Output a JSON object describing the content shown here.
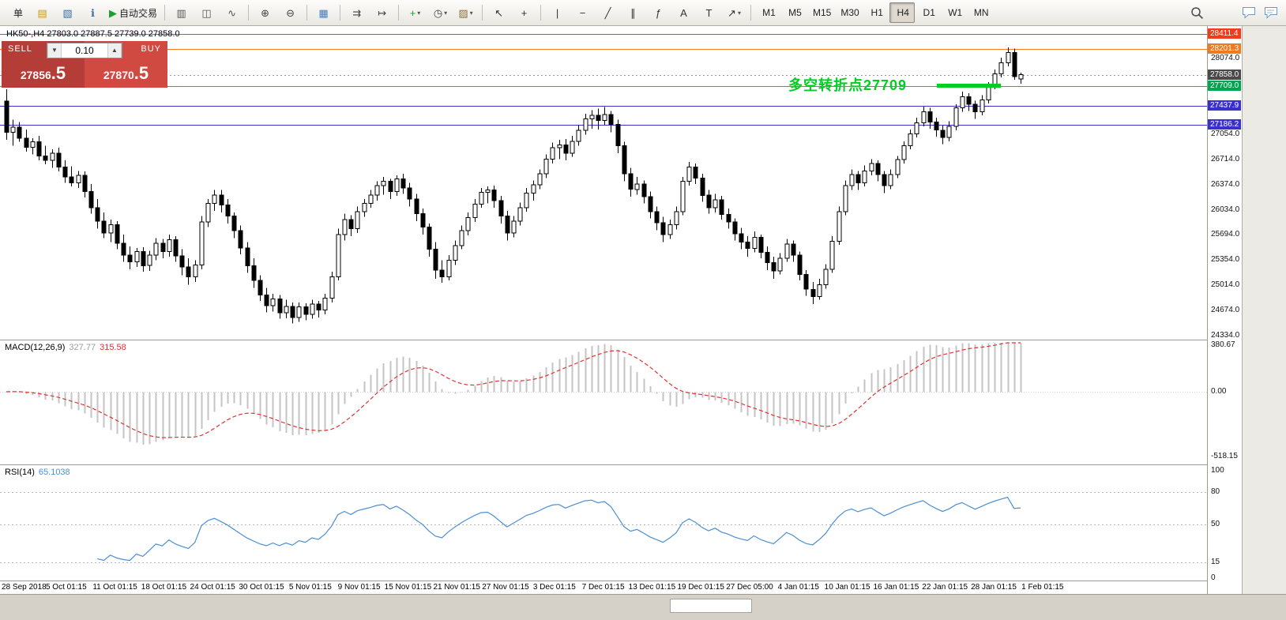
{
  "toolbar": {
    "caret_glyph": "▾",
    "items": [
      {
        "name": "new-order-button",
        "label": "单"
      },
      {
        "name": "market-watch-button",
        "icon": "market-watch-icon",
        "glyph": "▤",
        "color": "#c09a28"
      },
      {
        "name": "navigator-button",
        "icon": "navigator-icon",
        "glyph": "▧",
        "color": "#3a6ea5"
      },
      {
        "name": "data-window-button",
        "icon": "data-window-icon",
        "glyph": "ℹ",
        "color": "#3a6ea5"
      },
      {
        "name": "autotrading-button",
        "icon": "autotrading-play-icon",
        "glyph": "▶",
        "color": "#1d9e2f",
        "label": "自动交易"
      },
      {
        "sep": true
      },
      {
        "name": "bar-chart-button",
        "icon": "bar-chart-icon",
        "glyph": "▥",
        "color": "#555555"
      },
      {
        "name": "candlestick-chart-button",
        "icon": "candlestick-chart-icon",
        "glyph": "◫",
        "color": "#555555"
      },
      {
        "name": "line-chart-button",
        "icon": "line-chart-icon",
        "glyph": "∿",
        "color": "#555555"
      },
      {
        "sep": true
      },
      {
        "name": "zoom-in-button",
        "icon": "zoom-in-icon",
        "glyph": "⊕",
        "color": "#444444"
      },
      {
        "name": "zoom-out-button",
        "icon": "zoom-out-icon",
        "glyph": "⊖",
        "color": "#444444"
      },
      {
        "sep": true
      },
      {
        "name": "tile-windows-button",
        "icon": "tile-windows-icon",
        "glyph": "▦",
        "color": "#4c7ab0"
      },
      {
        "sep": true
      },
      {
        "name": "auto-scroll-button",
        "icon": "auto-scroll-icon",
        "glyph": "⇉",
        "color": "#444444"
      },
      {
        "name": "chart-shift-button",
        "icon": "chart-shift-icon",
        "glyph": "↦",
        "color": "#444444"
      },
      {
        "sep": true
      },
      {
        "name": "indicators-button",
        "icon": "indicators-plus-icon",
        "glyph": "+",
        "color": "#1d9e2f",
        "caret": true
      },
      {
        "name": "periods-button",
        "icon": "clock-icon",
        "glyph": "◷",
        "color": "#444444",
        "caret": true
      },
      {
        "name": "templates-button",
        "icon": "templates-icon",
        "glyph": "▨",
        "color": "#8a6d3b",
        "caret": true
      },
      {
        "sep": true
      },
      {
        "name": "cursor-button",
        "icon": "cursor-icon",
        "glyph": "↖",
        "color": "#333333"
      },
      {
        "name": "crosshair-button",
        "icon": "crosshair-icon",
        "glyph": "+",
        "color": "#333333"
      },
      {
        "sep": true
      },
      {
        "name": "vertical-line-button",
        "icon": "vertical-line-icon",
        "glyph": "|",
        "color": "#333333"
      },
      {
        "name": "horizontal-line-button",
        "icon": "horizontal-line-icon",
        "glyph": "−",
        "color": "#333333"
      },
      {
        "name": "trendline-button",
        "icon": "trendline-icon",
        "glyph": "╱",
        "color": "#333333"
      },
      {
        "name": "channel-button",
        "icon": "channel-icon",
        "glyph": "∥",
        "color": "#333333"
      },
      {
        "name": "fibonacci-button",
        "icon": "fibonacci-icon",
        "glyph": "ƒ",
        "color": "#333333"
      },
      {
        "name": "text-button",
        "icon": "text-icon",
        "glyph": "A",
        "color": "#333333"
      },
      {
        "name": "text-label-button",
        "icon": "text-label-icon",
        "glyph": "T",
        "color": "#333333"
      },
      {
        "name": "arrows-button",
        "icon": "arrow-objects-icon",
        "glyph": "↗",
        "color": "#333333",
        "caret": true
      },
      {
        "sep": true
      },
      {
        "name": "timeframe-m1-button",
        "label": "M1",
        "tf": true
      },
      {
        "name": "timeframe-m5-button",
        "label": "M5",
        "tf": true
      },
      {
        "name": "timeframe-m15-button",
        "label": "M15",
        "tf": true
      },
      {
        "name": "timeframe-m30-button",
        "label": "M30",
        "tf": true
      },
      {
        "name": "timeframe-h1-button",
        "label": "H1",
        "tf": true
      },
      {
        "name": "timeframe-h4-button",
        "label": "H4",
        "tf": true,
        "pressed": true
      },
      {
        "name": "timeframe-d1-button",
        "label": "D1",
        "tf": true
      },
      {
        "name": "timeframe-w1-button",
        "label": "W1",
        "tf": true
      },
      {
        "name": "timeframe-mn-button",
        "label": "MN",
        "tf": true
      }
    ],
    "active_timeframe": "H4"
  },
  "chart": {
    "title": "HK50-,H4 27803.0 27887.5 27739.0 27858.0",
    "bid": "27858.0",
    "annotation": {
      "text": "多空转折点27709",
      "color": "#00cf21",
      "segment_x": [
        1186,
        1267
      ]
    },
    "hlines": [
      {
        "price": 28411.4,
        "color": "#ff3b1e"
      },
      {
        "price": 28201.3,
        "color": "#ff7a1e"
      },
      {
        "price": 27709.0,
        "color": "#00cf21"
      },
      {
        "price": 27437.9,
        "color": "#3a30d0"
      },
      {
        "price": 27186.2,
        "color": "#3a30d0"
      }
    ],
    "price_axis": {
      "plain": [
        "28074.0",
        "27054.0",
        "26714.0",
        "26374.0",
        "26034.0",
        "25694.0",
        "25354.0",
        "25014.0",
        "24674.0",
        "24334.0"
      ],
      "highlighted": [
        {
          "value": "28411.4",
          "bg": "#f03c1e"
        },
        {
          "value": "28201.3",
          "bg": "#f07a1e"
        },
        {
          "value": "27858.0",
          "bg": "#4a4a4a"
        },
        {
          "value": "27709.0",
          "bg": "#00a550"
        },
        {
          "value": "27437.9",
          "bg": "#3a30d0"
        },
        {
          "value": "27186.2",
          "bg": "#3a30d0"
        }
      ]
    }
  },
  "trade_panel": {
    "sell_label": "SELL",
    "buy_label": "BUY",
    "volume": "0.10",
    "vol_down_glyph": "▼",
    "vol_up_glyph": "▲",
    "sell_price": {
      "main": "27856",
      "frac": ".5"
    },
    "buy_price": {
      "main": "27870",
      "frac": ".5"
    }
  },
  "macd": {
    "label": "MACD(12,26,9)",
    "value1": "327.77",
    "value2": "315.58",
    "axis": [
      "380.67",
      "0.00",
      "-518.15"
    ]
  },
  "rsi": {
    "label": "RSI(14)",
    "value": "65.1038",
    "axis": [
      "100",
      "80",
      "50",
      "15",
      "0"
    ],
    "levels": [
      80,
      50,
      15
    ]
  },
  "time_axis": [
    "28 Sep 2018",
    "5 Oct 01:15",
    "11 Oct 01:15",
    "18 Oct 01:15",
    "24 Oct 01:15",
    "30 Oct 01:15",
    "5 Nov 01:15",
    "9 Nov 01:15",
    "15 Nov 01:15",
    "21 Nov 01:15",
    "27 Nov 01:15",
    "3 Dec 01:15",
    "7 Dec 01:15",
    "13 Dec 01:15",
    "19 Dec 01:15",
    "27 Dec 05:00",
    "4 Jan 01:15",
    "10 Jan 01:15",
    "16 Jan 01:15",
    "22 Jan 01:15",
    "28 Jan 01:15",
    "1 Feb 01:15"
  ],
  "chart_data": {
    "type": "candlestick",
    "symbol": "HK50-",
    "period": "H4",
    "last_ohlc": {
      "open": 27803.0,
      "high": 27887.5,
      "low": 27739.0,
      "close": 27858.0
    },
    "price_axis_range": [
      24334.0,
      28550.0
    ],
    "candles": [
      [
        27500,
        27660,
        26980,
        27080
      ],
      [
        27080,
        27250,
        26900,
        27150
      ],
      [
        27150,
        27220,
        26950,
        27000
      ],
      [
        27000,
        27120,
        26820,
        26880
      ],
      [
        26880,
        27000,
        26780,
        26950
      ],
      [
        26950,
        27030,
        26700,
        26760
      ],
      [
        26760,
        26900,
        26650,
        26700
      ],
      [
        26700,
        26850,
        26600,
        26800
      ],
      [
        26800,
        26870,
        26550,
        26610
      ],
      [
        26610,
        26700,
        26400,
        26480
      ],
      [
        26480,
        26620,
        26350,
        26400
      ],
      [
        26400,
        26560,
        26330,
        26500
      ],
      [
        26500,
        26550,
        26200,
        26280
      ],
      [
        26280,
        26380,
        25980,
        26060
      ],
      [
        26060,
        26180,
        25780,
        25880
      ],
      [
        25880,
        26000,
        25650,
        25720
      ],
      [
        25720,
        25900,
        25600,
        25830
      ],
      [
        25830,
        25880,
        25500,
        25580
      ],
      [
        25580,
        25700,
        25330,
        25420
      ],
      [
        25420,
        25540,
        25230,
        25330
      ],
      [
        25330,
        25520,
        25260,
        25470
      ],
      [
        25470,
        25530,
        25200,
        25280
      ],
      [
        25280,
        25480,
        25210,
        25420
      ],
      [
        25420,
        25650,
        25350,
        25580
      ],
      [
        25580,
        25640,
        25380,
        25470
      ],
      [
        25470,
        25700,
        25400,
        25630
      ],
      [
        25630,
        25680,
        25330,
        25410
      ],
      [
        25410,
        25500,
        25150,
        25260
      ],
      [
        25260,
        25380,
        25020,
        25130
      ],
      [
        25130,
        25350,
        25060,
        25290
      ],
      [
        25290,
        25950,
        25230,
        25870
      ],
      [
        25870,
        26180,
        25800,
        26120
      ],
      [
        26120,
        26300,
        26020,
        26230
      ],
      [
        26230,
        26300,
        26000,
        26100
      ],
      [
        26100,
        26180,
        25850,
        25950
      ],
      [
        25950,
        26000,
        25650,
        25750
      ],
      [
        25750,
        25820,
        25430,
        25520
      ],
      [
        25520,
        25600,
        25180,
        25280
      ],
      [
        25280,
        25380,
        24980,
        25080
      ],
      [
        25080,
        25150,
        24800,
        24880
      ],
      [
        24880,
        24980,
        24650,
        24740
      ],
      [
        24740,
        24900,
        24660,
        24830
      ],
      [
        24830,
        24880,
        24560,
        24640
      ],
      [
        24640,
        24820,
        24570,
        24730
      ],
      [
        24730,
        24780,
        24500,
        24580
      ],
      [
        24580,
        24780,
        24520,
        24720
      ],
      [
        24720,
        24770,
        24540,
        24620
      ],
      [
        24620,
        24820,
        24560,
        24760
      ],
      [
        24760,
        24800,
        24580,
        24680
      ],
      [
        24680,
        24900,
        24620,
        24840
      ],
      [
        24840,
        25200,
        24780,
        25130
      ],
      [
        25130,
        25780,
        25080,
        25700
      ],
      [
        25700,
        25980,
        25620,
        25900
      ],
      [
        25900,
        25960,
        25680,
        25780
      ],
      [
        25780,
        26080,
        25720,
        26010
      ],
      [
        26010,
        26180,
        25940,
        26120
      ],
      [
        26120,
        26300,
        26060,
        26230
      ],
      [
        26230,
        26420,
        26160,
        26360
      ],
      [
        26360,
        26480,
        26240,
        26420
      ],
      [
        26420,
        26450,
        26180,
        26280
      ],
      [
        26280,
        26500,
        26220,
        26450
      ],
      [
        26450,
        26520,
        26250,
        26330
      ],
      [
        26330,
        26400,
        26080,
        26180
      ],
      [
        26180,
        26250,
        25880,
        25980
      ],
      [
        25980,
        26050,
        25700,
        25800
      ],
      [
        25800,
        25850,
        25400,
        25500
      ],
      [
        25500,
        25600,
        25100,
        25220
      ],
      [
        25220,
        25350,
        25050,
        25130
      ],
      [
        25130,
        25420,
        25080,
        25350
      ],
      [
        25350,
        25620,
        25290,
        25550
      ],
      [
        25550,
        25820,
        25500,
        25750
      ],
      [
        25750,
        26000,
        25690,
        25930
      ],
      [
        25930,
        26180,
        25870,
        26110
      ],
      [
        26110,
        26330,
        26060,
        26270
      ],
      [
        26270,
        26350,
        26120,
        26300
      ],
      [
        26300,
        26360,
        26060,
        26160
      ],
      [
        26160,
        26220,
        25850,
        25950
      ],
      [
        25950,
        26020,
        25620,
        25720
      ],
      [
        25720,
        25950,
        25660,
        25880
      ],
      [
        25880,
        26130,
        25820,
        26060
      ],
      [
        26060,
        26330,
        26010,
        26260
      ],
      [
        26260,
        26430,
        26160,
        26370
      ],
      [
        26370,
        26580,
        26310,
        26520
      ],
      [
        26520,
        26780,
        26460,
        26720
      ],
      [
        26720,
        26940,
        26660,
        26870
      ],
      [
        26870,
        26980,
        26720,
        26910
      ],
      [
        26910,
        26990,
        26700,
        26800
      ],
      [
        26800,
        27030,
        26750,
        26960
      ],
      [
        26960,
        27180,
        26900,
        27110
      ],
      [
        27110,
        27330,
        27050,
        27260
      ],
      [
        27260,
        27380,
        27130,
        27310
      ],
      [
        27310,
        27400,
        27120,
        27240
      ],
      [
        27240,
        27420,
        27180,
        27320
      ],
      [
        27320,
        27370,
        27080,
        27190
      ],
      [
        27190,
        27250,
        26800,
        26900
      ],
      [
        26900,
        26950,
        26420,
        26520
      ],
      [
        26520,
        26600,
        26210,
        26310
      ],
      [
        26310,
        26480,
        26240,
        26380
      ],
      [
        26380,
        26430,
        26120,
        26210
      ],
      [
        26210,
        26280,
        25920,
        26010
      ],
      [
        26010,
        26080,
        25760,
        25860
      ],
      [
        25860,
        25940,
        25600,
        25700
      ],
      [
        25700,
        25900,
        25640,
        25830
      ],
      [
        25830,
        26080,
        25770,
        26010
      ],
      [
        26010,
        26480,
        25960,
        26420
      ],
      [
        26420,
        26680,
        26360,
        26610
      ],
      [
        26610,
        26660,
        26380,
        26460
      ],
      [
        26460,
        26520,
        26140,
        26230
      ],
      [
        26230,
        26300,
        25980,
        26060
      ],
      [
        26060,
        26250,
        26000,
        26170
      ],
      [
        26170,
        26220,
        25900,
        25970
      ],
      [
        25970,
        26050,
        25780,
        25870
      ],
      [
        25870,
        25920,
        25620,
        25710
      ],
      [
        25710,
        25790,
        25500,
        25600
      ],
      [
        25600,
        25680,
        25400,
        25510
      ],
      [
        25510,
        25740,
        25460,
        25660
      ],
      [
        25660,
        25700,
        25380,
        25460
      ],
      [
        25460,
        25540,
        25220,
        25320
      ],
      [
        25320,
        25400,
        25100,
        25210
      ],
      [
        25210,
        25450,
        25160,
        25380
      ],
      [
        25380,
        25640,
        25330,
        25570
      ],
      [
        25570,
        25620,
        25330,
        25420
      ],
      [
        25420,
        25470,
        25080,
        25160
      ],
      [
        25160,
        25220,
        24870,
        24960
      ],
      [
        24960,
        25060,
        24760,
        24860
      ],
      [
        24860,
        25100,
        24820,
        25020
      ],
      [
        25020,
        25300,
        24970,
        25230
      ],
      [
        25230,
        25680,
        25180,
        25610
      ],
      [
        25610,
        26080,
        25560,
        26010
      ],
      [
        26010,
        26430,
        25960,
        26360
      ],
      [
        26360,
        26580,
        26300,
        26510
      ],
      [
        26510,
        26560,
        26300,
        26400
      ],
      [
        26400,
        26630,
        26350,
        26560
      ],
      [
        26560,
        26720,
        26500,
        26660
      ],
      [
        26660,
        26700,
        26420,
        26510
      ],
      [
        26510,
        26560,
        26260,
        26360
      ],
      [
        26360,
        26580,
        26310,
        26510
      ],
      [
        26510,
        26760,
        26460,
        26710
      ],
      [
        26710,
        26960,
        26660,
        26900
      ],
      [
        26900,
        27120,
        26850,
        27060
      ],
      [
        27060,
        27280,
        27010,
        27210
      ],
      [
        27210,
        27430,
        27160,
        27360
      ],
      [
        27360,
        27410,
        27130,
        27220
      ],
      [
        27220,
        27280,
        27020,
        27110
      ],
      [
        27110,
        27170,
        26920,
        27010
      ],
      [
        27010,
        27230,
        26960,
        27160
      ],
      [
        27160,
        27460,
        27110,
        27410
      ],
      [
        27410,
        27630,
        27360,
        27560
      ],
      [
        27560,
        27610,
        27370,
        27460
      ],
      [
        27460,
        27510,
        27260,
        27360
      ],
      [
        27360,
        27580,
        27310,
        27520
      ],
      [
        27520,
        27760,
        27470,
        27710
      ],
      [
        27710,
        27930,
        27660,
        27870
      ],
      [
        27870,
        28090,
        27820,
        28020
      ],
      [
        28020,
        28230,
        27970,
        28160
      ],
      [
        28160,
        28210,
        27790,
        27830
      ],
      [
        27803,
        27887.5,
        27739,
        27858
      ]
    ]
  }
}
